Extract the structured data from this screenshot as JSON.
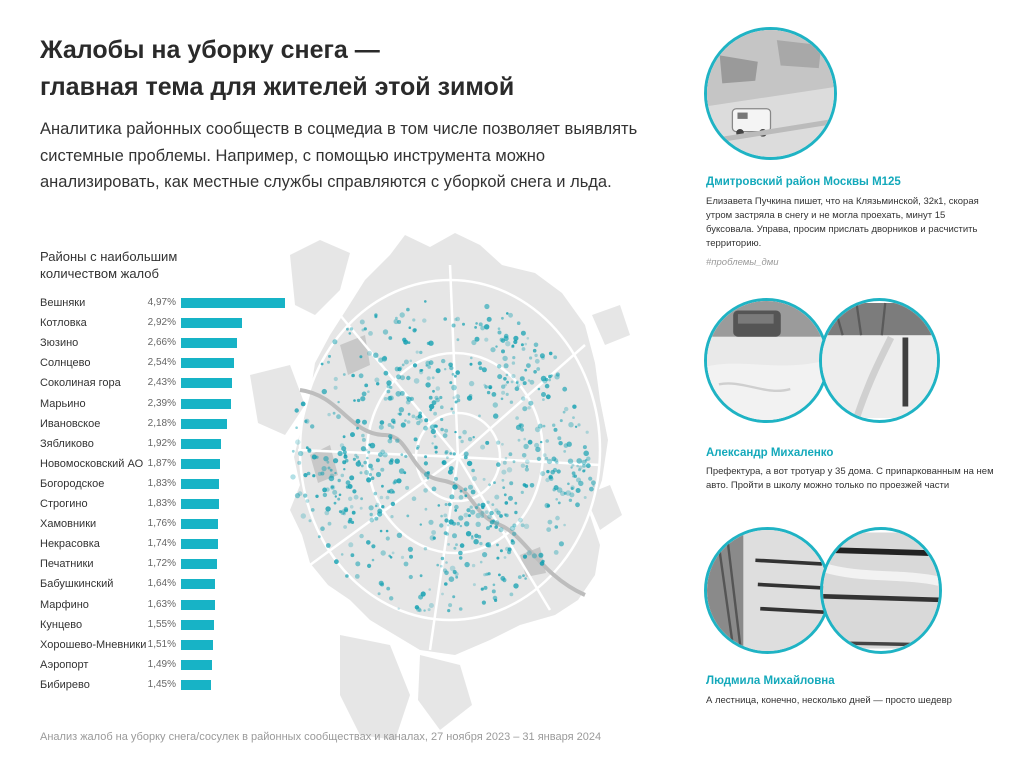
{
  "header": {
    "title_line1": "Жалобы на уборку снега —",
    "title_line2": "главная тема для жителей этой зимой",
    "subtitle": "Аналитика районных сообществ в соцмедиа в том числе позволяет выявлять системные проблемы. Например, с помощью инструмента можно анализировать, как местные службы справляются с уборкой снега и льда."
  },
  "colors": {
    "accent": "#17b3c6",
    "accent_text": "#14a9bb",
    "map_land": "#e4e4e4",
    "map_dots": "#0f9fb0"
  },
  "chart_data": {
    "type": "bar",
    "orientation": "horizontal",
    "title": "Районы с наибольшим количеством жалоб",
    "categories": [
      "Вешняки",
      "Котловка",
      "Зюзино",
      "Солнцево",
      "Соколиная гора",
      "Марьино",
      "Ивановское",
      "Зябликово",
      "Новомосковский АО",
      "Богородское",
      "Строгино",
      "Хамовники",
      "Некрасовка",
      "Печатники",
      "Бабушкинский",
      "Марфино",
      "Кунцево",
      "Хорошево-Мневники",
      "Аэропорт",
      "Бибирево"
    ],
    "values": [
      4.97,
      2.92,
      2.66,
      2.54,
      2.43,
      2.39,
      2.18,
      1.92,
      1.87,
      1.83,
      1.83,
      1.76,
      1.74,
      1.72,
      1.64,
      1.63,
      1.55,
      1.51,
      1.49,
      1.45
    ],
    "value_labels": [
      "4,97%",
      "2,92%",
      "2,66%",
      "2,54%",
      "2,43%",
      "2,39%",
      "2,18%",
      "1,92%",
      "1,87%",
      "1,83%",
      "1,83%",
      "1,76%",
      "1,74%",
      "1,72%",
      "1,64%",
      "1,63%",
      "1,55%",
      "1,51%",
      "1,49%",
      "1,45%"
    ],
    "xlim": [
      0,
      5
    ],
    "grid": false,
    "legend": "none"
  },
  "quotes": [
    {
      "name": "Дмитровский район Москвы М125",
      "text": "Елизавета Пучкина пишет, что на Клязьминской, 32к1, скорая утром застряла в снегу и не могла проехать, минут 15 буксовала. Управа, просим прислать дворников и расчистить территорию.",
      "tag": "#проблемы_дми"
    },
    {
      "name": "Александр Михаленко",
      "text": "Префектура, а вот тротуар у 35 дома. С припаркованным на нем авто. Пройти в школу можно только по проезжей части"
    },
    {
      "name": "Людмила Михайловна",
      "text": "А лестница, конечно, несколько дней — просто шедевр"
    }
  ],
  "footnote": "Анализ жалоб на уборку снега/сосулек в районных сообществах и каналах, 27 ноября 2023 – 31 января 2024"
}
